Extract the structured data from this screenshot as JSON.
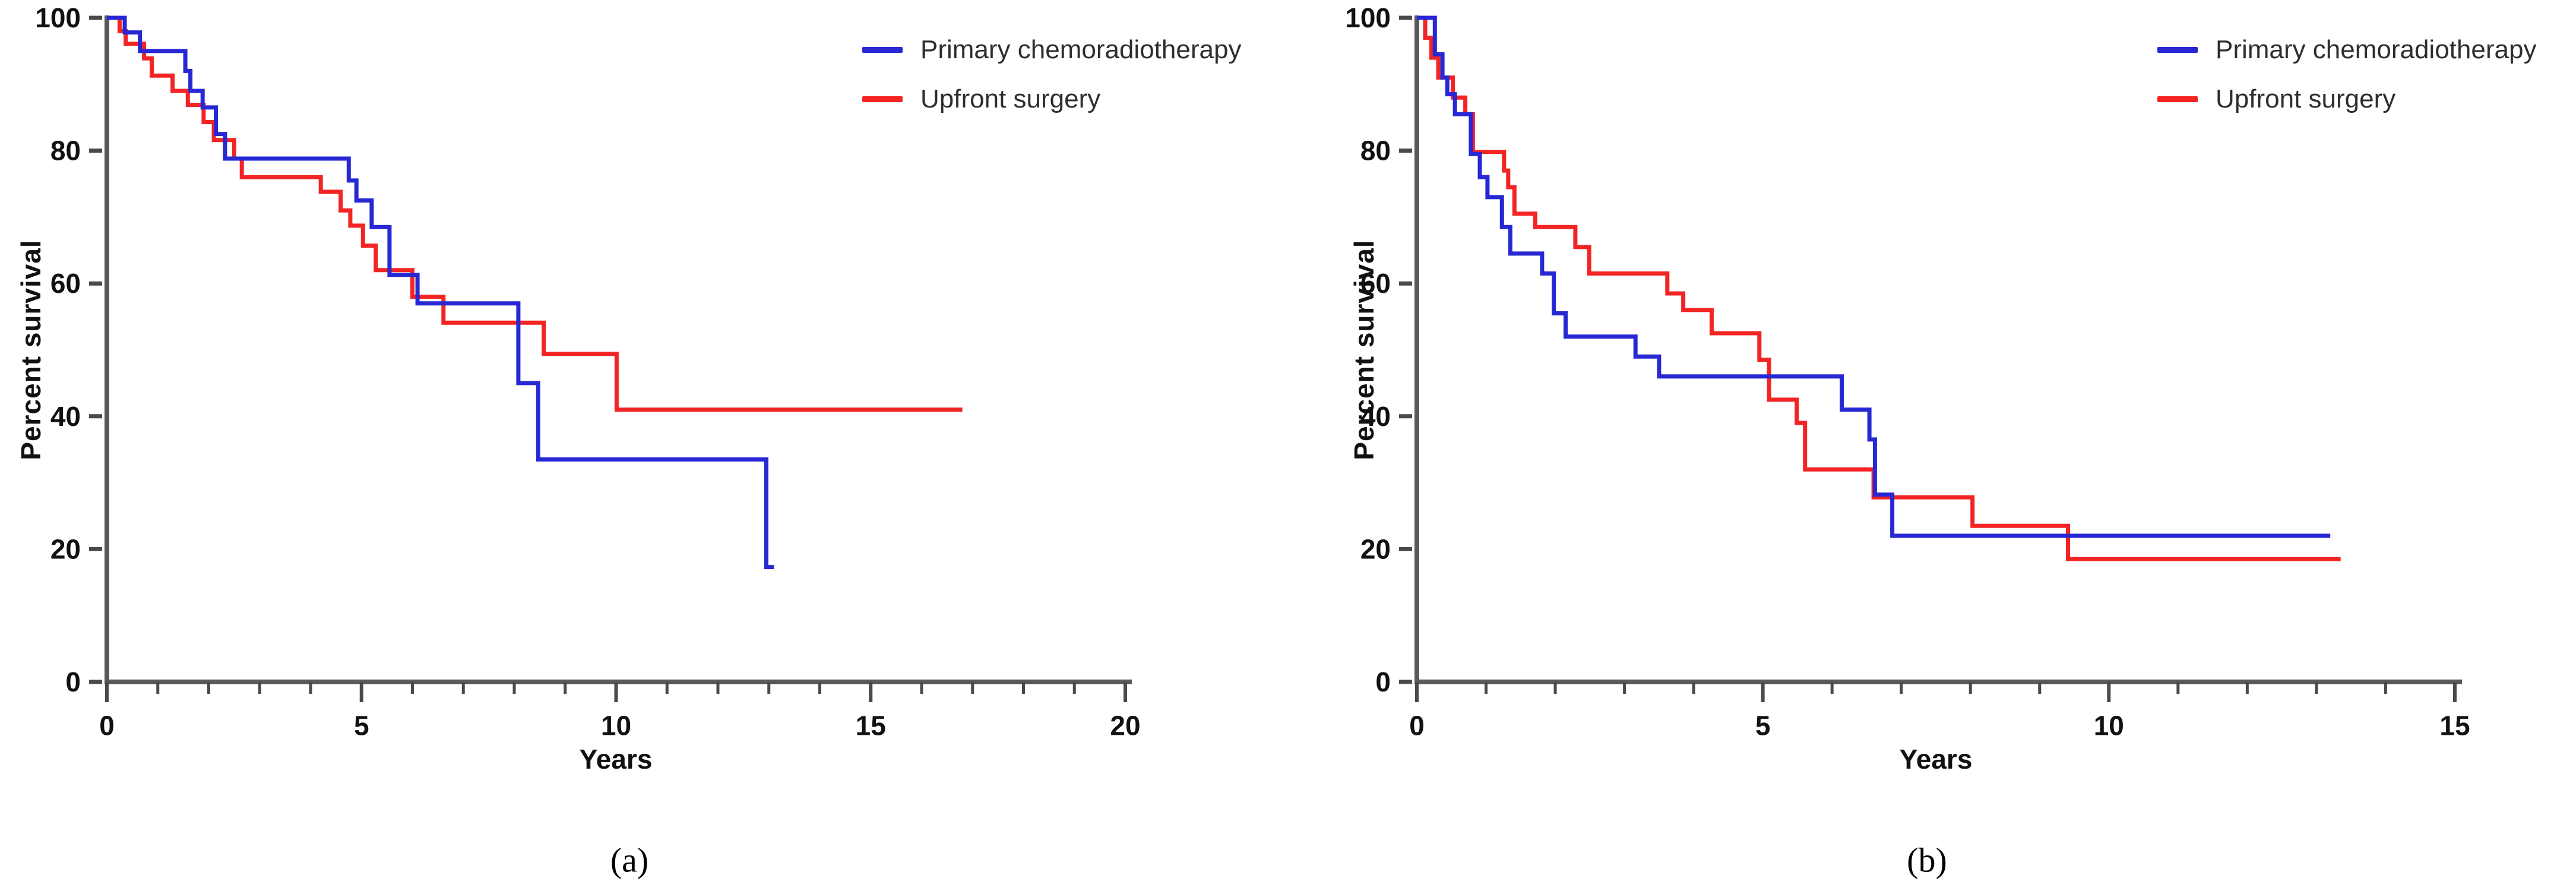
{
  "figure": {
    "background": "#ffffff"
  },
  "styles": {
    "axis_color": "#595959",
    "tick_color": "#4a4a4a",
    "tick_label_color": "#111111",
    "legend_text_color": "#2e2e2e",
    "primary_color": "#2727d3",
    "surgery_color": "#f32424"
  },
  "chart_data": [
    {
      "id": "a",
      "type": "line",
      "subtype": "kaplan-meier-step",
      "caption": "(a)",
      "xlabel": "Years",
      "ylabel": "Percent survival",
      "xlim": [
        0,
        20
      ],
      "ylim": [
        0,
        100
      ],
      "x_major_ticks": [
        0,
        5,
        10,
        15,
        20
      ],
      "x_minor_tick_step": 1,
      "y_ticks": [
        0,
        20,
        40,
        60,
        80,
        100
      ],
      "grid": false,
      "legend_position": "top-right",
      "series": [
        {
          "name": "Primary chemoradiotherapy",
          "color": "#2727d3",
          "points": [
            [
              0,
              100
            ],
            [
              0.35,
              97.8
            ],
            [
              0.65,
              95
            ],
            [
              1.54,
              92
            ],
            [
              1.64,
              89
            ],
            [
              1.88,
              86.5
            ],
            [
              2.14,
              82.5
            ],
            [
              2.32,
              78.8
            ],
            [
              4.75,
              75.5
            ],
            [
              4.9,
              72.5
            ],
            [
              5.2,
              68.5
            ],
            [
              5.55,
              61.3
            ],
            [
              6.1,
              57
            ],
            [
              8.08,
              45
            ],
            [
              8.47,
              33.5
            ],
            [
              12.95,
              17.3
            ],
            [
              13.1,
              17.3
            ]
          ]
        },
        {
          "name": "Upfront surgery",
          "color": "#f32424",
          "points": [
            [
              0,
              100
            ],
            [
              0.25,
              98
            ],
            [
              0.37,
              96.1
            ],
            [
              0.73,
              93.9
            ],
            [
              0.88,
              91.3
            ],
            [
              1.29,
              89
            ],
            [
              1.59,
              86.9
            ],
            [
              1.9,
              84.3
            ],
            [
              2.1,
              81.6
            ],
            [
              2.5,
              78.8
            ],
            [
              2.65,
              76
            ],
            [
              4.2,
              73.8
            ],
            [
              4.59,
              71
            ],
            [
              4.78,
              68.7
            ],
            [
              5.03,
              65.7
            ],
            [
              5.28,
              62
            ],
            [
              6.0,
              58
            ],
            [
              6.61,
              54.1
            ],
            [
              8.58,
              49.4
            ],
            [
              10.01,
              41
            ],
            [
              16.8,
              41
            ]
          ]
        }
      ]
    },
    {
      "id": "b",
      "type": "line",
      "subtype": "kaplan-meier-step",
      "caption": "(b)",
      "xlabel": "Years",
      "ylabel": "Percent survival",
      "xlim": [
        0,
        15
      ],
      "ylim": [
        0,
        100
      ],
      "x_major_ticks": [
        0,
        5,
        10,
        15
      ],
      "x_minor_tick_step": 1,
      "y_ticks": [
        0,
        20,
        40,
        60,
        80,
        100
      ],
      "grid": false,
      "legend_position": "top-right",
      "series": [
        {
          "name": "Primary chemoradiotherapy",
          "color": "#2727d3",
          "points": [
            [
              0,
              100
            ],
            [
              0.26,
              94.5
            ],
            [
              0.37,
              91
            ],
            [
              0.44,
              88.5
            ],
            [
              0.55,
              85.5
            ],
            [
              0.78,
              79.5
            ],
            [
              0.91,
              76
            ],
            [
              1.02,
              73
            ],
            [
              1.23,
              68.5
            ],
            [
              1.35,
              64.5
            ],
            [
              1.81,
              61.5
            ],
            [
              1.98,
              55.5
            ],
            [
              2.15,
              52
            ],
            [
              3.16,
              49
            ],
            [
              3.5,
              46
            ],
            [
              6.14,
              41
            ],
            [
              6.54,
              36.5
            ],
            [
              6.62,
              28.2
            ],
            [
              6.87,
              22
            ],
            [
              13.2,
              22
            ]
          ]
        },
        {
          "name": "Upfront surgery",
          "color": "#f32424",
          "points": [
            [
              0,
              100
            ],
            [
              0.12,
              97
            ],
            [
              0.21,
              94
            ],
            [
              0.31,
              91
            ],
            [
              0.52,
              88
            ],
            [
              0.7,
              85.5
            ],
            [
              0.81,
              79.8
            ],
            [
              1.26,
              77
            ],
            [
              1.32,
              74.5
            ],
            [
              1.41,
              70.5
            ],
            [
              1.71,
              68.5
            ],
            [
              2.29,
              65.5
            ],
            [
              2.49,
              61.5
            ],
            [
              3.62,
              58.5
            ],
            [
              3.85,
              56
            ],
            [
              4.26,
              52.5
            ],
            [
              4.95,
              48.5
            ],
            [
              5.09,
              42.5
            ],
            [
              5.49,
              39
            ],
            [
              5.61,
              32
            ],
            [
              6.6,
              27.8
            ],
            [
              8.03,
              23.5
            ],
            [
              9.41,
              18.5
            ],
            [
              13.35,
              18.5
            ]
          ]
        }
      ]
    }
  ]
}
